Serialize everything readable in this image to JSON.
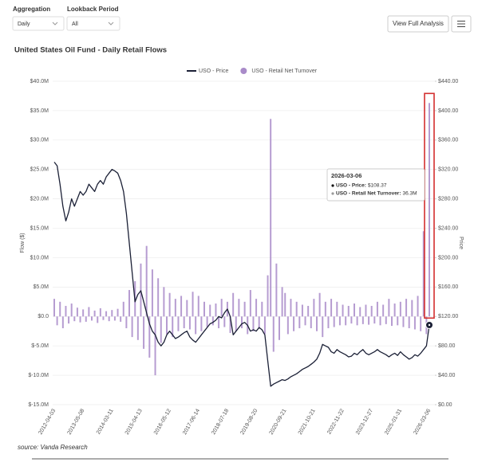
{
  "controls": [
    {
      "label": "Aggregation",
      "value": "Daily"
    },
    {
      "label": "Lookback Period",
      "value": "All"
    }
  ],
  "button": "View Full Analysis",
  "source": "source: Vanda Research",
  "chart_data": {
    "type": "bar",
    "title": "United States Oil Fund -  Daily Retail Flows",
    "ylabel": "Flow ($)",
    "y2label": "Price",
    "categories": [
      "2012-04-03",
      null,
      null,
      null,
      null,
      null,
      null,
      null,
      null,
      null,
      "2013-05-08",
      null,
      null,
      null,
      null,
      null,
      null,
      null,
      null,
      null,
      "2014-03-11",
      null,
      null,
      null,
      null,
      null,
      null,
      null,
      null,
      null,
      "2015-04-13",
      null,
      null,
      null,
      null,
      null,
      null,
      null,
      null,
      null,
      "2016-05-12",
      null,
      null,
      null,
      null,
      null,
      null,
      null,
      null,
      null,
      "2017-06-14",
      null,
      null,
      null,
      null,
      null,
      null,
      null,
      null,
      null,
      "2018-07-18",
      null,
      null,
      null,
      null,
      null,
      null,
      null,
      null,
      null,
      "2019-08-20",
      null,
      null,
      null,
      null,
      null,
      null,
      null,
      null,
      null,
      "2020-09-21",
      null,
      null,
      null,
      null,
      null,
      null,
      null,
      null,
      null,
      "2021-10-21",
      null,
      null,
      null,
      null,
      null,
      null,
      null,
      null,
      null,
      "2022-11-22",
      null,
      null,
      null,
      null,
      null,
      null,
      null,
      null,
      null,
      "2023-12-27",
      null,
      null,
      null,
      null,
      null,
      null,
      null,
      null,
      null,
      "2025-01-31",
      null,
      null,
      null,
      null,
      null,
      null,
      null,
      null,
      null,
      "2026-03-06"
    ],
    "series": [
      {
        "name": "USO - Price",
        "type": "line",
        "axis": "y2",
        "color": "#1b2036",
        "values": [
          330,
          325,
          300,
          270,
          250,
          262,
          280,
          270,
          280,
          290,
          285,
          290,
          300,
          295,
          290,
          300,
          305,
          300,
          310,
          315,
          320,
          318,
          315,
          305,
          290,
          260,
          220,
          180,
          140,
          150,
          155,
          140,
          125,
          110,
          100,
          95,
          85,
          80,
          85,
          95,
          100,
          95,
          90,
          92,
          95,
          98,
          100,
          92,
          88,
          85,
          90,
          95,
          100,
          105,
          110,
          112,
          115,
          120,
          118,
          125,
          130,
          120,
          95,
          100,
          105,
          110,
          112,
          108,
          100,
          102,
          100,
          105,
          102,
          95,
          60,
          25,
          28,
          30,
          32,
          34,
          33,
          35,
          38,
          40,
          42,
          45,
          48,
          50,
          52,
          55,
          58,
          62,
          70,
          82,
          80,
          78,
          72,
          70,
          75,
          72,
          70,
          68,
          65,
          66,
          70,
          68,
          72,
          75,
          70,
          68,
          70,
          72,
          75,
          72,
          70,
          68,
          65,
          68,
          70,
          67,
          72,
          68,
          65,
          62,
          64,
          68,
          66,
          70,
          75,
          80,
          108.37
        ]
      },
      {
        "name": "USO - Retail Net Turnover",
        "type": "bar",
        "color": "#a98bc9",
        "values": [
          3000000,
          -1500000,
          2500000,
          -2000000,
          1800000,
          -1200000,
          2200000,
          -800000,
          1500000,
          -1000000,
          1200000,
          -900000,
          1600000,
          -700000,
          1000000,
          -1100000,
          1400000,
          -600000,
          900000,
          -800000,
          1100000,
          -700000,
          1300000,
          -900000,
          2500000,
          -2000000,
          4500000,
          -3500000,
          6000000,
          -4000000,
          9000000,
          -5500000,
          12000000,
          -7000000,
          8000000,
          -10000000,
          6500000,
          -4500000,
          5000000,
          -3000000,
          4000000,
          -3500000,
          3000000,
          -2500000,
          3500000,
          -2000000,
          2800000,
          -2200000,
          4200000,
          -3000000,
          3500000,
          -2500000,
          2500000,
          -1800000,
          2000000,
          -1500000,
          2200000,
          -2000000,
          3000000,
          -1800000,
          2500000,
          -2800000,
          4000000,
          -2500000,
          3000000,
          -2000000,
          2500000,
          -3000000,
          4500000,
          -2500000,
          3000000,
          -2000000,
          2500000,
          -3000000,
          7000000,
          33600000,
          -6000000,
          9000000,
          -4000000,
          5000000,
          4000000,
          -3000000,
          3000000,
          -2500000,
          2500000,
          -2000000,
          2000000,
          -1500000,
          1800000,
          -2000000,
          3000000,
          -2500000,
          4000000,
          -3500000,
          2500000,
          -2000000,
          3000000,
          -1800000,
          2500000,
          -1500000,
          2000000,
          -1500000,
          1800000,
          -1200000,
          2200000,
          -1500000,
          1600000,
          -1300000,
          2000000,
          -1400000,
          1800000,
          -1200000,
          2500000,
          -1500000,
          2000000,
          -1300000,
          3000000,
          -1600000,
          2200000,
          -1500000,
          2500000,
          -1800000,
          3000000,
          -2000000,
          2800000,
          -2200000,
          3500000,
          -2500000,
          14500000,
          -3000000,
          36300000
        ]
      }
    ],
    "ylim": [
      -15000000,
      40000000
    ],
    "yticks": [
      {
        "value": -15000000,
        "label": "$-15.0M"
      },
      {
        "value": -10000000,
        "label": "$-10.0M"
      },
      {
        "value": -5000000,
        "label": "$-5.0M"
      },
      {
        "value": 0,
        "label": "$0.0"
      },
      {
        "value": 5000000,
        "label": "$5.0M"
      },
      {
        "value": 10000000,
        "label": "$10.0M"
      },
      {
        "value": 15000000,
        "label": "$15.0M"
      },
      {
        "value": 20000000,
        "label": "$20.0M"
      },
      {
        "value": 25000000,
        "label": "$25.0M"
      },
      {
        "value": 30000000,
        "label": "$30.0M"
      },
      {
        "value": 35000000,
        "label": "$35.0M"
      },
      {
        "value": 40000000,
        "label": "$40.0M"
      }
    ],
    "y2lim": [
      0,
      440
    ],
    "y2ticks": [
      {
        "value": 0,
        "label": "$0.00"
      },
      {
        "value": 40,
        "label": "$40.00"
      },
      {
        "value": 80,
        "label": "$80.00"
      },
      {
        "value": 120,
        "label": "$120.00"
      },
      {
        "value": 160,
        "label": "$160.00"
      },
      {
        "value": 200,
        "label": "$200.00"
      },
      {
        "value": 240,
        "label": "$240.00"
      },
      {
        "value": 280,
        "label": "$280.00"
      },
      {
        "value": 320,
        "label": "$320.00"
      },
      {
        "value": 360,
        "label": "$360.00"
      },
      {
        "value": 400,
        "label": "$400.00"
      },
      {
        "value": 440,
        "label": "$440.00"
      }
    ],
    "grid": true,
    "legend": "top",
    "tooltip": {
      "title": "2026-03-06",
      "rows": [
        {
          "label": "USO - Price:",
          "value": "$108.37"
        },
        {
          "label": "USO - Retail Net Turnover:",
          "value": "36.3M"
        }
      ]
    }
  }
}
